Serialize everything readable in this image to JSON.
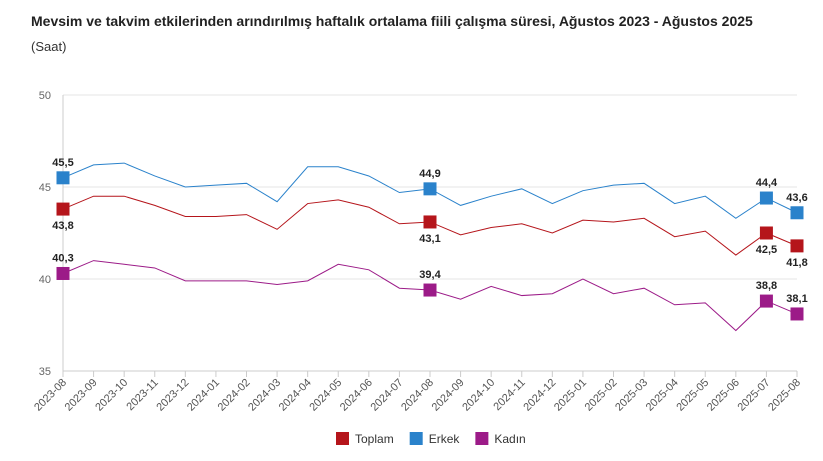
{
  "chart_data": {
    "type": "line",
    "title": "Mevsim ve takvim etkilerinden arındırılmış haftalık ortalama fiili çalışma süresi, Ağustos 2023 - Ağustos 2025",
    "subtitle": "(Saat)",
    "ylim": [
      35,
      50
    ],
    "yticks": [
      35,
      40,
      45,
      50
    ],
    "grid": true,
    "legend_position": "bottom",
    "categories": [
      "2023-08",
      "2023-09",
      "2023-10",
      "2023-11",
      "2023-12",
      "2024-01",
      "2024-02",
      "2024-03",
      "2024-04",
      "2024-05",
      "2024-06",
      "2024-07",
      "2024-08",
      "2024-09",
      "2024-10",
      "2024-11",
      "2024-12",
      "2025-01",
      "2025-02",
      "2025-03",
      "2025-04",
      "2025-05",
      "2025-06",
      "2025-07",
      "2025-08"
    ],
    "labeled_indices": [
      0,
      12,
      23,
      24
    ],
    "series": [
      {
        "name": "Toplam",
        "color": "#b5151b",
        "label_pos": "below",
        "values": [
          43.8,
          44.5,
          44.5,
          44.0,
          43.4,
          43.4,
          43.5,
          42.7,
          44.1,
          44.3,
          43.9,
          43.0,
          43.1,
          42.4,
          42.8,
          43.0,
          42.5,
          43.2,
          43.1,
          43.3,
          42.3,
          42.6,
          41.3,
          42.5,
          41.8
        ]
      },
      {
        "name": "Erkek",
        "color": "#2a82cb",
        "label_pos": "above",
        "values": [
          45.5,
          46.2,
          46.3,
          45.6,
          45.0,
          45.1,
          45.2,
          44.2,
          46.1,
          46.1,
          45.6,
          44.7,
          44.9,
          44.0,
          44.5,
          44.9,
          44.1,
          44.8,
          45.1,
          45.2,
          44.1,
          44.5,
          43.3,
          44.4,
          43.6
        ]
      },
      {
        "name": "Kadın",
        "color": "#9c1b88",
        "label_pos": "above",
        "values": [
          40.3,
          41.0,
          40.8,
          40.6,
          39.9,
          39.9,
          39.9,
          39.7,
          39.9,
          40.8,
          40.5,
          39.5,
          39.4,
          38.9,
          39.6,
          39.1,
          39.2,
          40.0,
          39.2,
          39.5,
          38.6,
          38.7,
          37.2,
          38.8,
          38.1
        ]
      }
    ]
  }
}
